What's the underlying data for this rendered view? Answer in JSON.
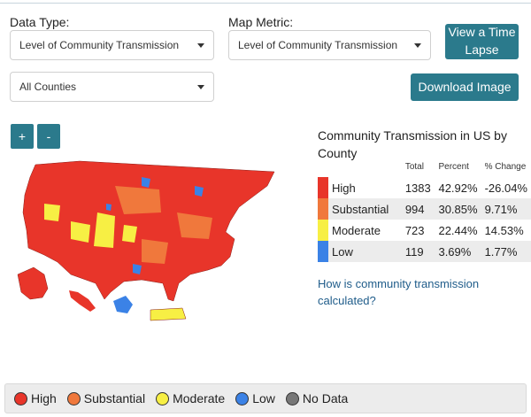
{
  "controls": {
    "data_type_label": "Data Type:",
    "data_type_value": "Level of Community Transmission",
    "map_metric_label": "Map Metric:",
    "map_metric_value": "Level of Community Transmission",
    "county_value": "All Counties",
    "time_lapse_line1": "View a Time",
    "time_lapse_line2": "Lapse",
    "download_label": "Download Image",
    "zoom_in": "+",
    "zoom_out": "-"
  },
  "legend": {
    "title": "Community Transmission in US by County",
    "headers": [
      "Total",
      "Percent",
      "% Change"
    ],
    "rows": [
      {
        "level": "High",
        "total": "1383",
        "percent": "42.92%",
        "change": "-26.04%",
        "color": "#e8352a"
      },
      {
        "level": "Substantial",
        "total": "994",
        "percent": "30.85%",
        "change": "9.71%",
        "color": "#f0783c"
      },
      {
        "level": "Moderate",
        "total": "723",
        "percent": "22.44%",
        "change": "14.53%",
        "color": "#f7ef44"
      },
      {
        "level": "Low",
        "total": "119",
        "percent": "3.69%",
        "change": "1.77%",
        "color": "#3b82e6"
      }
    ],
    "link_text": "How is community transmission calculated?"
  },
  "bottom_legend": [
    {
      "label": "High",
      "color": "#e8352a"
    },
    {
      "label": "Substantial",
      "color": "#f0783c"
    },
    {
      "label": "Moderate",
      "color": "#f7ef44"
    },
    {
      "label": "Low",
      "color": "#3b82e6"
    },
    {
      "label": "No Data",
      "color": "#777777"
    }
  ]
}
